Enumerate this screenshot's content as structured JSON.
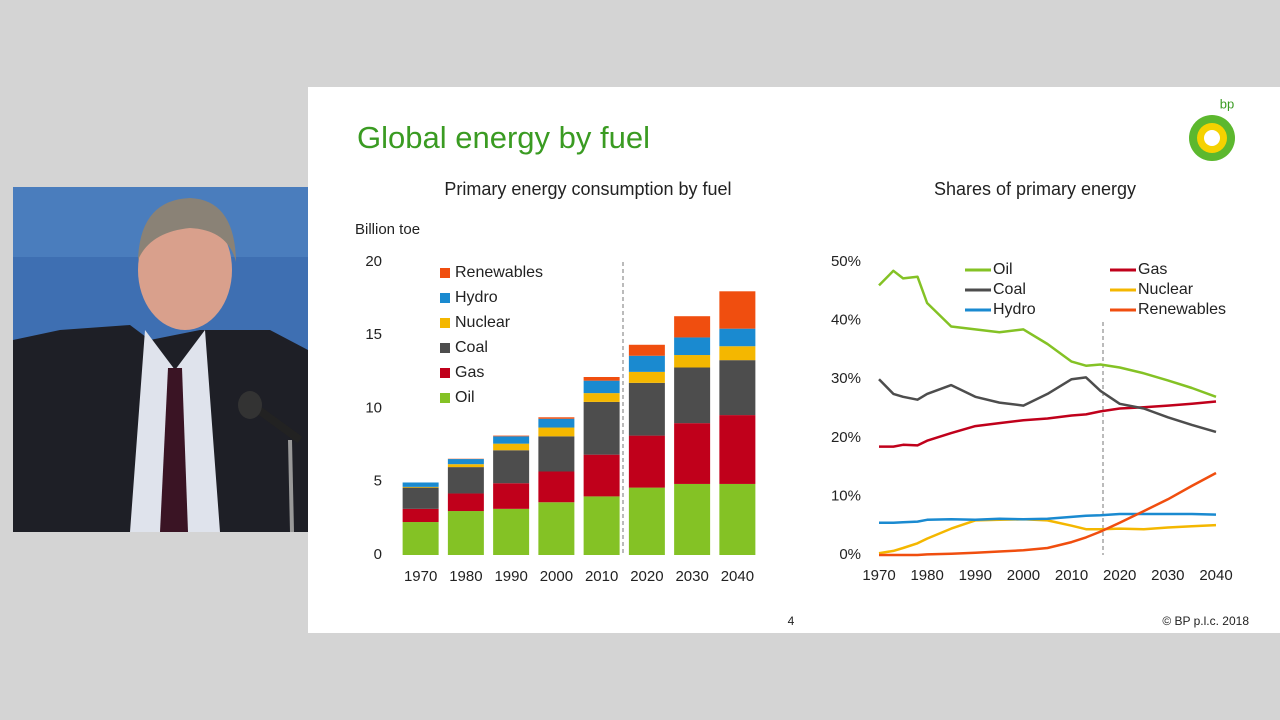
{
  "slide": {
    "title": "Global energy by fuel",
    "logo": "bp",
    "page_number": 4,
    "copyright": "© BP p.l.c. 2018"
  },
  "chart_data": [
    {
      "type": "bar",
      "stacked": true,
      "title": "Primary energy consumption by fuel",
      "y_label": "Billion toe",
      "categories": [
        "1970",
        "1980",
        "1990",
        "2000",
        "2010",
        "2020",
        "2030",
        "2040"
      ],
      "series": [
        {
          "name": "Oil",
          "color": "#84c225",
          "values": [
            2.25,
            3.0,
            3.15,
            3.6,
            4.0,
            4.6,
            4.85,
            4.85
          ]
        },
        {
          "name": "Gas",
          "color": "#c0001b",
          "values": [
            0.9,
            1.2,
            1.75,
            2.1,
            2.85,
            3.55,
            4.15,
            4.7
          ]
        },
        {
          "name": "Coal",
          "color": "#4d4d4d",
          "values": [
            1.45,
            1.8,
            2.25,
            2.4,
            3.6,
            3.6,
            3.8,
            3.75
          ]
        },
        {
          "name": "Nuclear",
          "color": "#f4b700",
          "values": [
            0.05,
            0.2,
            0.45,
            0.6,
            0.6,
            0.75,
            0.85,
            0.95
          ]
        },
        {
          "name": "Hydro",
          "color": "#1a8ad0",
          "values": [
            0.3,
            0.35,
            0.5,
            0.6,
            0.85,
            1.1,
            1.2,
            1.2
          ]
        },
        {
          "name": "Renewables",
          "color": "#f04e0f",
          "values": [
            0,
            0.02,
            0.05,
            0.1,
            0.25,
            0.75,
            1.45,
            2.55
          ]
        }
      ],
      "ylim": [
        0,
        20
      ],
      "yticks": [
        0,
        5,
        10,
        15,
        20
      ],
      "legend": "top-left"
    },
    {
      "type": "line",
      "title": "Shares of primary energy",
      "x": [
        1970,
        1973,
        1975,
        1978,
        1980,
        1985,
        1990,
        1995,
        2000,
        2005,
        2010,
        2013,
        2016,
        2020,
        2025,
        2030,
        2035,
        2040
      ],
      "series": [
        {
          "name": "Oil",
          "color": "#84c225",
          "values": [
            46,
            48.5,
            47.2,
            47.5,
            43,
            39,
            38.5,
            38,
            38.5,
            36,
            33,
            32.3,
            32.5,
            32,
            31,
            29.8,
            28.5,
            27
          ]
        },
        {
          "name": "Gas",
          "color": "#c0001b",
          "values": [
            18.5,
            18.5,
            18.8,
            18.7,
            19.5,
            20.8,
            22,
            22.5,
            23,
            23.3,
            23.8,
            24,
            24.5,
            25,
            25.2,
            25.5,
            25.8,
            26.2
          ]
        },
        {
          "name": "Coal",
          "color": "#4d4d4d",
          "values": [
            30,
            27.5,
            27,
            26.5,
            27.5,
            29,
            27,
            26,
            25.5,
            27.5,
            30,
            30.3,
            28,
            25.8,
            25,
            23.5,
            22.2,
            21
          ]
        },
        {
          "name": "Nuclear",
          "color": "#f4b700",
          "values": [
            0.3,
            0.7,
            1.2,
            2,
            2.8,
            4.5,
            5.9,
            6,
            6.1,
            5.9,
            5,
            4.4,
            4.4,
            4.5,
            4.4,
            4.7,
            4.9,
            5.1
          ]
        },
        {
          "name": "Hydro",
          "color": "#1a8ad0",
          "values": [
            5.5,
            5.5,
            5.6,
            5.7,
            6,
            6.1,
            6,
            6.2,
            6.1,
            6.2,
            6.5,
            6.7,
            6.8,
            7,
            7,
            7,
            7,
            6.9
          ]
        },
        {
          "name": "Renewables",
          "color": "#f04e0f",
          "values": [
            0,
            0,
            0,
            0,
            0.1,
            0.2,
            0.4,
            0.6,
            0.8,
            1.2,
            2.2,
            3,
            4,
            5.5,
            7.5,
            9.5,
            11.8,
            14
          ]
        }
      ],
      "xlim": [
        1970,
        2040
      ],
      "xticks": [
        1970,
        1980,
        1990,
        2000,
        2010,
        2020,
        2030,
        2040
      ],
      "ylim": [
        0,
        50
      ],
      "yticks": [
        {
          "value": 0,
          "label": "0%"
        },
        {
          "value": 10,
          "label": "10%"
        },
        {
          "value": 20,
          "label": "20%"
        },
        {
          "value": 30,
          "label": "30%"
        },
        {
          "value": 40,
          "label": "40%"
        },
        {
          "value": 50,
          "label": "50%"
        }
      ],
      "legend": "top"
    }
  ]
}
